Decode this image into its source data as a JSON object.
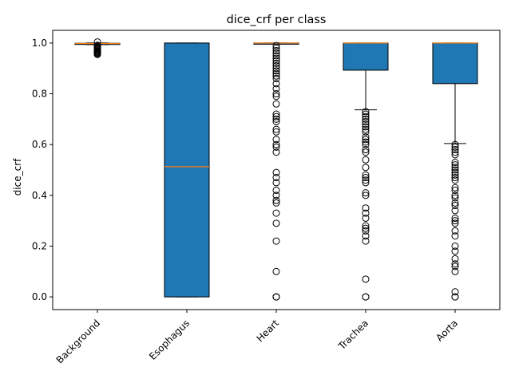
{
  "chart_data": {
    "type": "boxplot",
    "title": "dice_crf per class",
    "xlabel": "",
    "ylabel": "dice_crf",
    "ylim": [
      -0.05,
      1.05
    ],
    "yticks": [
      0.0,
      0.2,
      0.4,
      0.6,
      0.8,
      1.0
    ],
    "ytick_labels": [
      "0.0",
      "0.2",
      "0.4",
      "0.6",
      "0.8",
      "1.0"
    ],
    "grid": false,
    "box_color": "#1f77b4",
    "median_color": "#ff7f0e",
    "categories": [
      "Background",
      "Esophagus",
      "Heart",
      "Trachea",
      "Aorta"
    ],
    "boxes": [
      {
        "name": "Background",
        "whisker_low": 0.994,
        "q1": 0.996,
        "median": 0.998,
        "q3": 0.999,
        "whisker_high": 1.0,
        "outliers": [
          0.955,
          0.958,
          0.961,
          0.964,
          0.967,
          0.97,
          0.973,
          0.976,
          0.979,
          0.982,
          0.985,
          0.988,
          0.991,
          1.004
        ]
      },
      {
        "name": "Esophagus",
        "whisker_low": 0.0,
        "q1": 0.0,
        "median": 0.513,
        "q3": 1.0,
        "whisker_high": 1.0,
        "outliers": []
      },
      {
        "name": "Heart",
        "whisker_low": 1.0,
        "q1": 1.0,
        "median": 1.0,
        "q3": 1.0,
        "whisker_high": 1.0,
        "outliers": [
          0.0,
          0.0,
          0.0,
          0.1,
          0.22,
          0.29,
          0.33,
          0.37,
          0.38,
          0.4,
          0.42,
          0.45,
          0.47,
          0.49,
          0.57,
          0.59,
          0.6,
          0.62,
          0.65,
          0.66,
          0.69,
          0.7,
          0.71,
          0.72,
          0.76,
          0.79,
          0.8,
          0.82,
          0.84,
          0.86,
          0.87,
          0.88,
          0.89,
          0.9,
          0.91,
          0.92,
          0.93,
          0.94,
          0.95,
          0.96,
          0.97,
          0.98,
          0.99
        ]
      },
      {
        "name": "Trachea",
        "whisker_low": 0.737,
        "q1": 0.893,
        "median": 1.0,
        "q3": 1.0,
        "whisker_high": 1.0,
        "outliers": [
          0.0,
          0.0,
          0.07,
          0.22,
          0.24,
          0.26,
          0.27,
          0.28,
          0.31,
          0.33,
          0.35,
          0.4,
          0.41,
          0.45,
          0.46,
          0.47,
          0.48,
          0.51,
          0.54,
          0.57,
          0.58,
          0.6,
          0.61,
          0.62,
          0.63,
          0.65,
          0.66,
          0.67,
          0.68,
          0.69,
          0.7,
          0.71,
          0.72,
          0.73
        ]
      },
      {
        "name": "Aorta",
        "whisker_low": 0.604,
        "q1": 0.84,
        "median": 1.0,
        "q3": 1.0,
        "whisker_high": 1.0,
        "outliers": [
          0.0,
          0.0,
          0.02,
          0.1,
          0.12,
          0.13,
          0.15,
          0.18,
          0.2,
          0.24,
          0.26,
          0.29,
          0.3,
          0.31,
          0.34,
          0.36,
          0.37,
          0.39,
          0.4,
          0.42,
          0.43,
          0.46,
          0.47,
          0.48,
          0.49,
          0.5,
          0.51,
          0.52,
          0.53,
          0.56,
          0.57,
          0.58,
          0.59,
          0.6
        ]
      }
    ]
  }
}
